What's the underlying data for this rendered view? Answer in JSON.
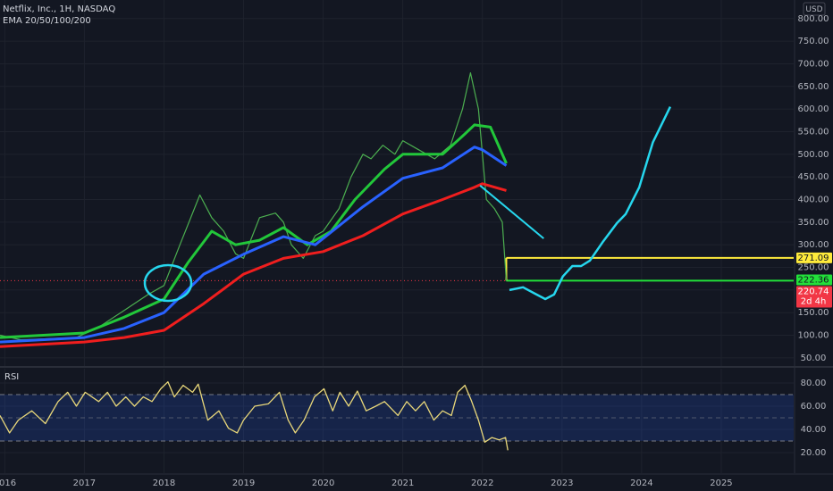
{
  "chart_data": [
    {
      "type": "line",
      "title": "Netflix, Inc., 1H, NASDAQ",
      "subtitle": "EMA 20/50/100/200",
      "currency": "USD",
      "xlim": [
        2015.94,
        2025.91
      ],
      "ylim": [
        32,
        841
      ],
      "yticks": [
        {
          "value": 50,
          "label": "50.00"
        },
        {
          "value": 100,
          "label": "100.00"
        },
        {
          "value": 150,
          "label": "150.00"
        },
        {
          "value": 200,
          "label": "200.00"
        },
        {
          "value": 250,
          "label": "250.00"
        },
        {
          "value": 300,
          "label": "300.00"
        },
        {
          "value": 350,
          "label": "350.00"
        },
        {
          "value": 400,
          "label": "400.00"
        },
        {
          "value": 450,
          "label": "450.00"
        },
        {
          "value": 500,
          "label": "500.00"
        },
        {
          "value": 550,
          "label": "550.00"
        },
        {
          "value": 600,
          "label": "600.00"
        },
        {
          "value": 650,
          "label": "650.00"
        },
        {
          "value": 700,
          "label": "700.00"
        },
        {
          "value": 750,
          "label": "750.00"
        },
        {
          "value": 800,
          "label": "800.00"
        }
      ],
      "series": [
        {
          "color": "#4caf50",
          "width": 1.2,
          "x": [
            2015.94,
            2016.2,
            2016.5,
            2016.9,
            2017.2,
            2017.5,
            2017.8,
            2018.0,
            2018.2,
            2018.45,
            2018.6,
            2018.75,
            2018.9,
            2019.0,
            2019.2,
            2019.4,
            2019.5,
            2019.6,
            2019.75,
            2019.9,
            2020.0,
            2020.2,
            2020.35,
            2020.5,
            2020.6,
            2020.75,
            2020.9,
            2021.0,
            2021.2,
            2021.4,
            2021.6,
            2021.75,
            2021.85,
            2021.95,
            2022.05,
            2022.15,
            2022.25,
            2022.3
          ],
          "values": [
            100,
            90,
            92,
            95,
            120,
            155,
            190,
            210,
            300,
            410,
            360,
            330,
            280,
            270,
            360,
            370,
            350,
            300,
            270,
            320,
            330,
            380,
            450,
            500,
            490,
            520,
            500,
            530,
            510,
            490,
            520,
            600,
            680,
            600,
            400,
            380,
            350,
            220
          ]
        },
        {
          "color": "#22c73a",
          "width": 3,
          "x": [
            2015.94,
            2017.0,
            2017.5,
            2018.0,
            2018.3,
            2018.6,
            2018.9,
            2019.2,
            2019.5,
            2019.8,
            2020.1,
            2020.4,
            2020.77,
            2021.0,
            2021.5,
            2021.78,
            2021.9,
            2022.1,
            2022.3
          ],
          "values": [
            95,
            105,
            140,
            180,
            260,
            330,
            300,
            310,
            338,
            300,
            330,
            400,
            467,
            500,
            500,
            545,
            565,
            560,
            480
          ]
        },
        {
          "color": "#2962ff",
          "width": 3,
          "x": [
            2015.94,
            2017.0,
            2017.5,
            2018.0,
            2018.5,
            2019.0,
            2019.5,
            2019.9,
            2020.5,
            2021.0,
            2021.5,
            2021.9,
            2022.0,
            2022.3
          ],
          "values": [
            85,
            95,
            115,
            150,
            235,
            279,
            318,
            300,
            384,
            447,
            470,
            516,
            510,
            475
          ]
        },
        {
          "color": "#f01e1e",
          "width": 3,
          "x": [
            2015.94,
            2017.0,
            2017.5,
            2018.0,
            2018.5,
            2019.0,
            2019.5,
            2020.0,
            2020.5,
            2021.0,
            2021.5,
            2021.9,
            2022.0,
            2022.3
          ],
          "values": [
            75,
            85,
            95,
            111,
            170,
            235,
            270,
            285,
            320,
            368,
            400,
            427,
            435,
            420
          ]
        },
        {
          "color": "#26d7ee",
          "width": 2.5,
          "x": [
            2022.34,
            2022.51,
            2022.68,
            2022.79,
            2022.9,
            2023.01,
            2023.13,
            2023.24,
            2023.35,
            2023.52,
            2023.69,
            2023.8,
            2023.97,
            2024.14,
            2024.36
          ],
          "values": [
            200,
            206,
            190,
            180,
            190,
            230,
            253,
            253,
            265,
            308,
            348,
            368,
            427,
            526,
            605
          ]
        },
        {
          "color": "#26d7ee",
          "width": 2,
          "x": [
            2021.97,
            2022.77
          ],
          "values": [
            431,
            314
          ]
        }
      ],
      "levels": [
        {
          "value": 271.09,
          "color": "#ffeb3b"
        },
        {
          "value": 220.74,
          "color": "#22e03a"
        }
      ],
      "price_labels": [
        {
          "value": 271.09,
          "color": "#ffeb3b"
        },
        {
          "value": 222.36,
          "color": "#22e03a"
        },
        {
          "value": 220.74,
          "color": "#f23645"
        }
      ],
      "last_price": 220.74,
      "countdown": "2d 4h"
    },
    {
      "type": "line",
      "title": "RSI",
      "xlim": [
        2015.94,
        2025.91
      ],
      "ylim": [
        2.3,
        92.3
      ],
      "xticks": [
        2016,
        2017,
        2018,
        2019,
        2020,
        2021,
        2022,
        2023,
        2024,
        2025
      ],
      "yticks": [
        {
          "value": 20,
          "label": "20.00"
        },
        {
          "value": 40,
          "label": "40.00"
        },
        {
          "value": 60,
          "label": "60.00"
        },
        {
          "value": 80,
          "label": "80.00"
        }
      ],
      "band": [
        30,
        70
      ],
      "midline": 50,
      "series": [
        {
          "color": "#e8d77a",
          "width": 1.3,
          "x": [
            2015.94,
            2016.06,
            2016.17,
            2016.34,
            2016.51,
            2016.67,
            2016.79,
            2016.9,
            2017.01,
            2017.18,
            2017.29,
            2017.4,
            2017.52,
            2017.63,
            2017.74,
            2017.85,
            2017.96,
            2018.05,
            2018.13,
            2018.24,
            2018.36,
            2018.43,
            2018.55,
            2018.69,
            2018.81,
            2018.92,
            2019.0,
            2019.14,
            2019.31,
            2019.45,
            2019.56,
            2019.65,
            2019.76,
            2019.89,
            2020.01,
            2020.12,
            2020.21,
            2020.32,
            2020.43,
            2020.54,
            2020.66,
            2020.77,
            2020.94,
            2021.05,
            2021.16,
            2021.27,
            2021.39,
            2021.5,
            2021.61,
            2021.69,
            2021.78,
            2021.86,
            2021.95,
            2022.03,
            2022.12,
            2022.21,
            2022.29,
            2022.32
          ],
          "values": [
            52,
            37,
            48,
            56,
            45,
            64,
            72,
            60,
            72,
            64,
            72,
            60,
            68,
            60,
            68,
            64,
            75,
            81,
            68,
            78,
            72,
            79,
            48,
            56,
            41,
            37,
            48,
            60,
            62,
            72,
            48,
            37,
            48,
            68,
            75,
            56,
            72,
            60,
            73,
            56,
            60,
            64,
            52,
            64,
            56,
            64,
            48,
            56,
            52,
            72,
            78,
            65,
            48,
            29,
            33,
            31,
            33,
            22
          ]
        }
      ]
    }
  ]
}
